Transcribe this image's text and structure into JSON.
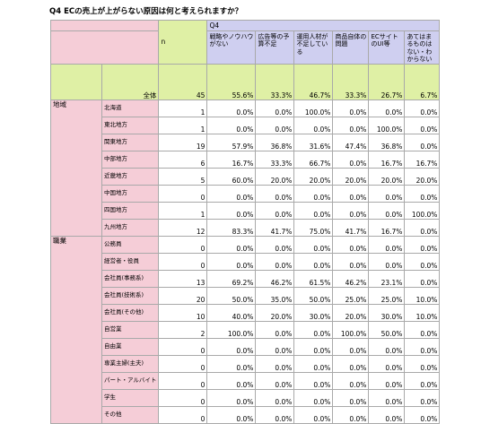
{
  "title": "Q4 ECの売上が上がらない原因は何と考えられますか？",
  "header": {
    "n_label": "n",
    "q_label": "Q4",
    "columns": [
      "戦略やノウハウがない",
      "広告等の予算不足",
      "運用人材が不足している",
      "商品自体の問題",
      "ECサイトのUI等",
      "あてはまるものはない・わからない"
    ]
  },
  "total": {
    "label": "全体",
    "n": "45",
    "values": [
      "55.6%",
      "33.3%",
      "46.7%",
      "33.3%",
      "26.7%",
      "6.7%"
    ]
  },
  "groups": [
    {
      "label": "地域",
      "rows": [
        {
          "label": "北海道",
          "n": "1",
          "values": [
            "0.0%",
            "0.0%",
            "100.0%",
            "0.0%",
            "0.0%",
            "0.0%"
          ]
        },
        {
          "label": "東北地方",
          "n": "1",
          "values": [
            "0.0%",
            "0.0%",
            "0.0%",
            "0.0%",
            "100.0%",
            "0.0%"
          ]
        },
        {
          "label": "関東地方",
          "n": "19",
          "values": [
            "57.9%",
            "36.8%",
            "31.6%",
            "47.4%",
            "36.8%",
            "0.0%"
          ]
        },
        {
          "label": "中部地方",
          "n": "6",
          "values": [
            "16.7%",
            "33.3%",
            "66.7%",
            "0.0%",
            "16.7%",
            "16.7%"
          ]
        },
        {
          "label": "近畿地方",
          "n": "5",
          "values": [
            "60.0%",
            "20.0%",
            "20.0%",
            "20.0%",
            "20.0%",
            "20.0%"
          ]
        },
        {
          "label": "中国地方",
          "n": "0",
          "values": [
            "0.0%",
            "0.0%",
            "0.0%",
            "0.0%",
            "0.0%",
            "0.0%"
          ]
        },
        {
          "label": "四国地方",
          "n": "1",
          "values": [
            "0.0%",
            "0.0%",
            "0.0%",
            "0.0%",
            "0.0%",
            "100.0%"
          ]
        },
        {
          "label": "九州地方",
          "n": "12",
          "values": [
            "83.3%",
            "41.7%",
            "75.0%",
            "41.7%",
            "16.7%",
            "0.0%"
          ]
        }
      ]
    },
    {
      "label": "職業",
      "rows": [
        {
          "label": "公務員",
          "n": "0",
          "values": [
            "0.0%",
            "0.0%",
            "0.0%",
            "0.0%",
            "0.0%",
            "0.0%"
          ]
        },
        {
          "label": "経営者・役員",
          "n": "0",
          "values": [
            "0.0%",
            "0.0%",
            "0.0%",
            "0.0%",
            "0.0%",
            "0.0%"
          ]
        },
        {
          "label": "会社員(事務系)",
          "n": "13",
          "values": [
            "69.2%",
            "46.2%",
            "61.5%",
            "46.2%",
            "23.1%",
            "0.0%"
          ]
        },
        {
          "label": "会社員(技術系)",
          "n": "20",
          "values": [
            "50.0%",
            "35.0%",
            "50.0%",
            "25.0%",
            "25.0%",
            "10.0%"
          ]
        },
        {
          "label": "会社員(その他)",
          "n": "10",
          "values": [
            "40.0%",
            "20.0%",
            "30.0%",
            "20.0%",
            "30.0%",
            "10.0%"
          ]
        },
        {
          "label": "自営業",
          "n": "2",
          "values": [
            "100.0%",
            "0.0%",
            "0.0%",
            "100.0%",
            "50.0%",
            "0.0%"
          ]
        },
        {
          "label": "自由業",
          "n": "0",
          "values": [
            "0.0%",
            "0.0%",
            "0.0%",
            "0.0%",
            "0.0%",
            "0.0%"
          ]
        },
        {
          "label": "専業主婦(主夫)",
          "n": "0",
          "values": [
            "0.0%",
            "0.0%",
            "0.0%",
            "0.0%",
            "0.0%",
            "0.0%"
          ]
        },
        {
          "label": "パート・アルバイト",
          "n": "0",
          "values": [
            "0.0%",
            "0.0%",
            "0.0%",
            "0.0%",
            "0.0%",
            "0.0%"
          ]
        },
        {
          "label": "学生",
          "n": "0",
          "values": [
            "0.0%",
            "0.0%",
            "0.0%",
            "0.0%",
            "0.0%",
            "0.0%"
          ]
        },
        {
          "label": "その他",
          "n": "0",
          "values": [
            "0.0%",
            "0.0%",
            "0.0%",
            "0.0%",
            "0.0%",
            "0.0%"
          ]
        }
      ]
    }
  ]
}
